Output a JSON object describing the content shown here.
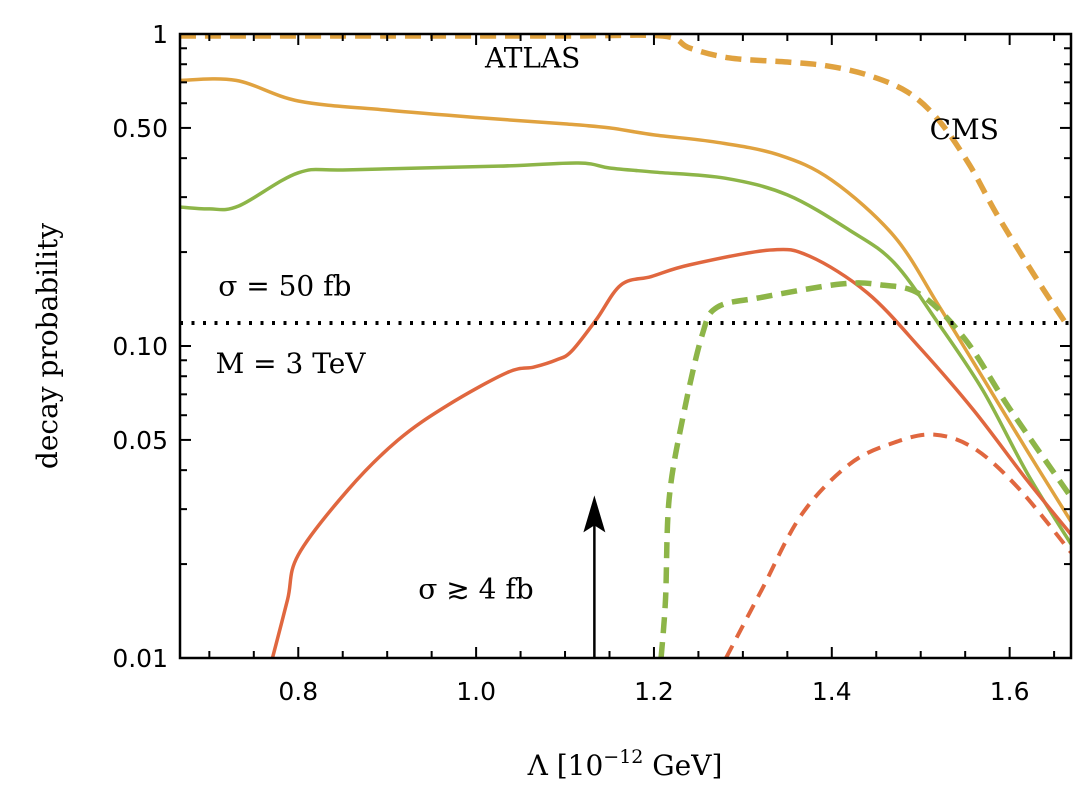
{
  "chart_data": {
    "type": "line",
    "title": "",
    "xlabel": "Λ [10⁻¹² GeV]",
    "xlabel_parts": {
      "base": "Λ [10",
      "sup": "−12",
      "tail": " GeV]"
    },
    "ylabel": "decay probability",
    "xlim": [
      0.667,
      1.669
    ],
    "ylim": [
      0.01,
      1
    ],
    "yscale": "log",
    "grid": false,
    "legend": "none",
    "x_ticks": [
      {
        "value": 0.8,
        "label": "0.8"
      },
      {
        "value": 1.0,
        "label": "1.0"
      },
      {
        "value": 1.2,
        "label": "1.2"
      },
      {
        "value": 1.4,
        "label": "1.4"
      },
      {
        "value": 1.6,
        "label": "1.6"
      }
    ],
    "x_minor_step": 0.05,
    "y_ticks": [
      {
        "value": 1,
        "label": "1"
      },
      {
        "value": 0.5,
        "label": "0.50"
      },
      {
        "value": 0.1,
        "label": "0.10"
      },
      {
        "value": 0.05,
        "label": "0.05"
      },
      {
        "value": 0.01,
        "label": "0.01"
      }
    ],
    "y_minor": [
      0.9,
      0.8,
      0.7,
      0.6,
      0.4,
      0.3,
      0.2,
      0.09,
      0.08,
      0.07,
      0.06,
      0.04,
      0.03,
      0.02
    ],
    "colors": {
      "orange": "#E0A23F",
      "green": "#8DB548",
      "red": "#E0673F",
      "black": "#000000"
    },
    "series": [
      {
        "name": "ATLAS (solid, orange)",
        "color": "orange",
        "style": "solid",
        "points": [
          [
            0.667,
            0.71
          ],
          [
            0.73,
            0.71
          ],
          [
            0.8,
            0.61
          ],
          [
            0.9,
            0.57
          ],
          [
            1.0,
            0.54
          ],
          [
            1.1,
            0.515
          ],
          [
            1.15,
            0.5
          ],
          [
            1.2,
            0.475
          ],
          [
            1.27,
            0.45
          ],
          [
            1.34,
            0.41
          ],
          [
            1.4,
            0.34
          ],
          [
            1.47,
            0.225
          ],
          [
            1.52,
            0.135
          ],
          [
            1.56,
            0.088
          ],
          [
            1.62,
            0.046
          ],
          [
            1.669,
            0.0274
          ]
        ]
      },
      {
        "name": "ATLAS (solid, green)",
        "color": "green",
        "style": "solid",
        "points": [
          [
            0.667,
            0.279
          ],
          [
            0.7,
            0.275
          ],
          [
            0.733,
            0.281
          ],
          [
            0.8,
            0.359
          ],
          [
            0.856,
            0.367
          ],
          [
            1.025,
            0.377
          ],
          [
            1.115,
            0.386
          ],
          [
            1.15,
            0.372
          ],
          [
            1.2,
            0.361
          ],
          [
            1.28,
            0.345
          ],
          [
            1.35,
            0.305
          ],
          [
            1.42,
            0.235
          ],
          [
            1.47,
            0.185
          ],
          [
            1.52,
            0.118
          ],
          [
            1.57,
            0.072
          ],
          [
            1.62,
            0.039
          ],
          [
            1.669,
            0.0232
          ]
        ]
      },
      {
        "name": "ATLAS (solid, red)",
        "color": "red",
        "style": "solid",
        "points": [
          [
            0.771,
            0.01
          ],
          [
            0.788,
            0.0154
          ],
          [
            0.8,
            0.0214
          ],
          [
            0.856,
            0.0346
          ],
          [
            0.912,
            0.0499
          ],
          [
            0.968,
            0.0646
          ],
          [
            1.035,
            0.0822
          ],
          [
            1.065,
            0.0856
          ],
          [
            1.09,
            0.0902
          ],
          [
            1.107,
            0.096
          ],
          [
            1.135,
            0.1213
          ],
          [
            1.163,
            0.157
          ],
          [
            1.197,
            0.167
          ],
          [
            1.24,
            0.182
          ],
          [
            1.33,
            0.203
          ],
          [
            1.375,
            0.194
          ],
          [
            1.44,
            0.148
          ],
          [
            1.5,
            0.098
          ],
          [
            1.56,
            0.062
          ],
          [
            1.62,
            0.037
          ],
          [
            1.669,
            0.0249
          ]
        ]
      },
      {
        "name": "CMS (dashed, orange)",
        "color": "orange",
        "style": "dashed",
        "points": [
          [
            0.667,
            0.985
          ],
          [
            0.9,
            0.985
          ],
          [
            1.1,
            0.985
          ],
          [
            1.21,
            0.985
          ],
          [
            1.24,
            0.902
          ],
          [
            1.285,
            0.838
          ],
          [
            1.35,
            0.813
          ],
          [
            1.395,
            0.79
          ],
          [
            1.44,
            0.739
          ],
          [
            1.485,
            0.652
          ],
          [
            1.52,
            0.53
          ],
          [
            1.555,
            0.38
          ],
          [
            1.586,
            0.263
          ],
          [
            1.631,
            0.163
          ],
          [
            1.666,
            0.115
          ]
        ]
      },
      {
        "name": "CMS (dashed, green)",
        "color": "green",
        "style": "dashed",
        "points": [
          [
            1.208,
            0.01
          ],
          [
            1.213,
            0.0154
          ],
          [
            1.217,
            0.0322
          ],
          [
            1.232,
            0.058
          ],
          [
            1.254,
            0.108
          ],
          [
            1.271,
            0.133
          ],
          [
            1.32,
            0.143
          ],
          [
            1.41,
            0.158
          ],
          [
            1.455,
            0.157
          ],
          [
            1.5,
            0.146
          ],
          [
            1.55,
            0.105
          ],
          [
            1.6,
            0.063
          ],
          [
            1.669,
            0.0328
          ]
        ]
      },
      {
        "name": "CMS (dashed, red)",
        "color": "red",
        "style": "dashed",
        "points": [
          [
            1.281,
            0.01
          ],
          [
            1.321,
            0.0165
          ],
          [
            1.366,
            0.0288
          ],
          [
            1.42,
            0.0418
          ],
          [
            1.47,
            0.049
          ],
          [
            1.515,
            0.052
          ],
          [
            1.56,
            0.047
          ],
          [
            1.61,
            0.035
          ],
          [
            1.669,
            0.0218
          ]
        ]
      }
    ],
    "reference_line": {
      "name": "sigma-50fb-threshold",
      "y": 0.1185,
      "style": "dotted",
      "color": "black"
    },
    "arrow": {
      "x": 1.133,
      "y_from": 0.01,
      "y_to": 0.0332,
      "label": "σ ≳ 4 fb"
    },
    "annotations": [
      {
        "name": "atlas-label",
        "text": "ATLAS",
        "x": 1.01,
        "y": 0.78
      },
      {
        "name": "cms-label",
        "text": "CMS",
        "x": 1.51,
        "y": 0.46
      },
      {
        "name": "sigma-50fb-label",
        "text": "σ = 50 fb",
        "x": 0.71,
        "y": 0.145
      },
      {
        "name": "mass-label",
        "text": "M = 3 TeV",
        "x": 0.707,
        "y": 0.082
      },
      {
        "name": "sigma-4fb-label",
        "text": "σ ≳ 4 fb",
        "x": 0.935,
        "y": 0.0155
      }
    ]
  }
}
